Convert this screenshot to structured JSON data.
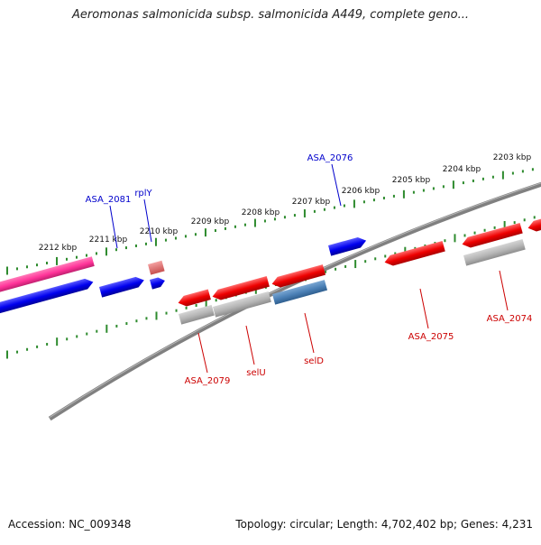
{
  "title": "Aeromonas salmonicida subsp. salmonicida A449, complete geno...",
  "footer": {
    "accession": "Accession: NC_009348",
    "topology": "Topology: circular; Length: 4,702,402 bp; Genes: 4,231"
  },
  "colors": {
    "background": "#ffffff",
    "backbone": "#808080",
    "ruler_ticks": "#2e8b2e",
    "forward_cds": "#0000ee",
    "reverse_cds": "#ee0000",
    "rna": "#ff3399",
    "pseudo": "#e07070",
    "reverse_rna": "#4a7fb5",
    "gene_shadow": "#a8a8a8",
    "forward_label": "#0000cc",
    "reverse_label": "#cc0000"
  },
  "ruler": {
    "units": "kbp",
    "labels": [
      "2212 kbp",
      "2211 kbp",
      "2210 kbp",
      "2209 kbp",
      "2208 kbp",
      "2207 kbp",
      "2206 kbp",
      "2205 kbp",
      "2204 kbp",
      "2203 kbp"
    ]
  },
  "gene_labels": {
    "forward": [
      "ASA_2081",
      "rplY",
      "ASA_2076"
    ],
    "reverse": [
      "ASA_2079",
      "selU",
      "selD",
      "ASA_2075",
      "ASA_2074"
    ]
  }
}
